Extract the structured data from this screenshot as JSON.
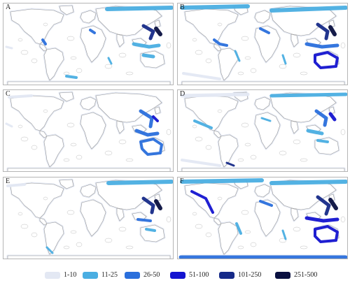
{
  "panels": [
    {
      "letter": "A"
    },
    {
      "letter": "B"
    },
    {
      "letter": "C"
    },
    {
      "letter": "D"
    },
    {
      "letter": "E"
    },
    {
      "letter": "F"
    }
  ],
  "legend": {
    "items": [
      {
        "label": "1-10",
        "color": "#e3e8f3"
      },
      {
        "label": "11-25",
        "color": "#4aaee2"
      },
      {
        "label": "26-50",
        "color": "#2a6fdc"
      },
      {
        "label": "51-100",
        "color": "#1414d0"
      },
      {
        "label": "101-250",
        "color": "#162a88"
      },
      {
        "label": "251-500",
        "color": "#0a1040"
      }
    ]
  },
  "colors": {
    "land_outline": "#9a9a9a",
    "coast_light": "#e3e8f3",
    "panel_border": "#b5b5b5"
  }
}
